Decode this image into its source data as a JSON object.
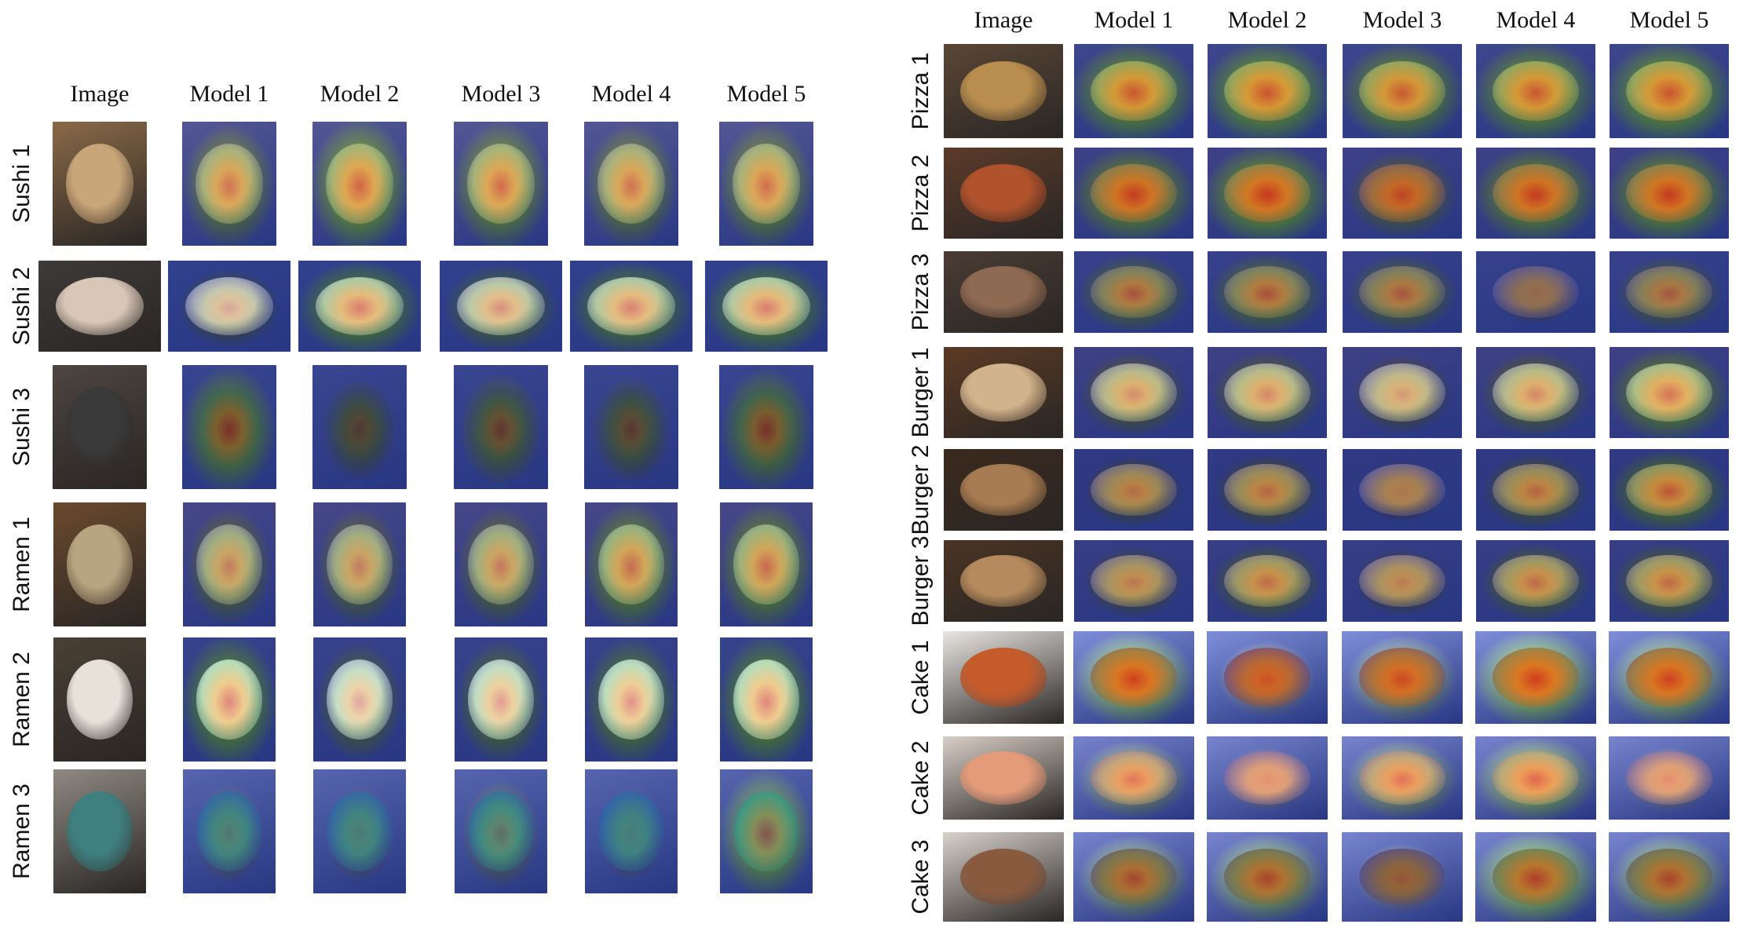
{
  "left_panel": {
    "headers": [
      "Image",
      "Model 1",
      "Model 2",
      "Model 3",
      "Model 4",
      "Model 5"
    ],
    "rows": [
      {
        "label": "Sushi 1",
        "base": "#8a6a48",
        "plate": "#c9a67a",
        "heat": [
          0,
          0.7,
          0.9,
          0.8,
          0.7,
          0.75
        ]
      },
      {
        "label": "Sushi 2",
        "base": "#3d3a3a",
        "plate": "#d8c6b6",
        "heat": [
          0,
          0.35,
          0.8,
          0.6,
          0.75,
          0.8
        ]
      },
      {
        "label": "Sushi 3",
        "base": "#4d4540",
        "plate": "#3a3a3a",
        "heat": [
          0,
          0.75,
          0.25,
          0.45,
          0.35,
          0.7
        ]
      },
      {
        "label": "Ramen 1",
        "base": "#6b4a2e",
        "plate": "#b8a480",
        "heat": [
          0,
          0.55,
          0.55,
          0.6,
          0.8,
          0.8
        ]
      },
      {
        "label": "Ramen 2",
        "base": "#4a4034",
        "plate": "#e6e2da",
        "heat": [
          0,
          0.85,
          0.55,
          0.65,
          0.75,
          0.85
        ]
      },
      {
        "label": "Ramen 3",
        "base": "#8e8a82",
        "plate": "#3e7f80",
        "heat": [
          0,
          0.2,
          0.15,
          0.35,
          0.1,
          0.8
        ]
      }
    ]
  },
  "right_panel": {
    "headers": [
      "Image",
      "Model 1",
      "Model 2",
      "Model 3",
      "Model 4",
      "Model 5"
    ],
    "rows": [
      {
        "label": "Pizza 1",
        "base": "#5a4636",
        "plate": "#b88d4e",
        "heat": [
          0,
          0.9,
          0.95,
          0.85,
          0.9,
          0.95
        ]
      },
      {
        "label": "Pizza 2",
        "base": "#5b3b2a",
        "plate": "#b0532d",
        "heat": [
          0,
          0.85,
          0.95,
          0.55,
          0.85,
          0.9
        ]
      },
      {
        "label": "Pizza 3",
        "base": "#4a3c34",
        "plate": "#8f6a52",
        "heat": [
          0,
          0.6,
          0.65,
          0.55,
          0.1,
          0.5
        ]
      },
      {
        "label": "Burger 1",
        "base": "#5b3a24",
        "plate": "#d2b48c",
        "heat": [
          0,
          0.5,
          0.55,
          0.35,
          0.55,
          0.8
        ]
      },
      {
        "label": "Burger 2",
        "base": "#3b2a1e",
        "plate": "#a87c52",
        "heat": [
          0,
          0.35,
          0.45,
          0.1,
          0.5,
          0.75
        ]
      },
      {
        "label": "Burger 3",
        "base": "#4a3424",
        "plate": "#b48a5e",
        "heat": [
          0,
          0.35,
          0.55,
          0.25,
          0.55,
          0.6
        ]
      },
      {
        "label": "Cake 1",
        "base": "#e9e6e2",
        "plate": "#c55a2a",
        "heat": [
          0,
          0.8,
          0.3,
          0.55,
          0.85,
          0.75
        ]
      },
      {
        "label": "Cake 2",
        "base": "#d9cfc7",
        "plate": "#e49b7a",
        "heat": [
          0,
          0.55,
          0.15,
          0.6,
          0.75,
          0.2
        ]
      },
      {
        "label": "Cake 3",
        "base": "#d8d2cc",
        "plate": "#8a5a3e",
        "heat": [
          0,
          0.6,
          0.7,
          0.2,
          0.85,
          0.7
        ]
      }
    ]
  }
}
